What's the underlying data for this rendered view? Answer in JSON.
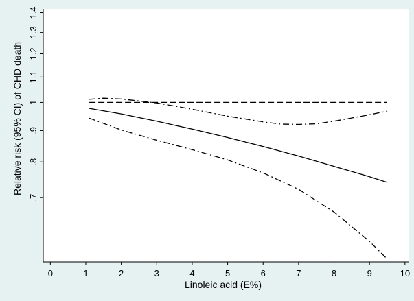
{
  "chart_data": {
    "type": "line",
    "title": "",
    "xlabel": "Linoleic acid (E%)",
    "ylabel": "Relative risk (95% CI) of CHD death",
    "xlim": [
      -0.2,
      10.1
    ],
    "ylim": [
      0.55,
      1.42
    ],
    "y_scale": "log",
    "x_ticks": [
      "0",
      "1",
      "2",
      "3",
      "4",
      "5",
      "6",
      "7",
      "8",
      "9",
      "10"
    ],
    "y_ticks": [
      {
        "value": 0.7,
        "label": ".7"
      },
      {
        "value": 0.8,
        "label": ".8"
      },
      {
        "value": 0.9,
        "label": ".9"
      },
      {
        "value": 1.0,
        "label": "1"
      },
      {
        "value": 1.1,
        "label": "1.1"
      },
      {
        "value": 1.2,
        "label": "1.2"
      },
      {
        "value": 1.3,
        "label": "1.3"
      },
      {
        "value": 1.4,
        "label": "1.4"
      }
    ],
    "grid": false,
    "legend": "none",
    "series": [
      {
        "role": "reference",
        "line_style": "dashed",
        "x": [
          1.1,
          9.5
        ],
        "y": [
          1.0,
          1.0
        ]
      },
      {
        "role": "estimate",
        "line_style": "solid",
        "x": [
          1.1,
          2,
          3,
          4,
          5,
          6,
          7,
          8,
          9,
          9.5
        ],
        "y": [
          0.978,
          0.958,
          0.932,
          0.905,
          0.877,
          0.848,
          0.818,
          0.787,
          0.757,
          0.741
        ]
      },
      {
        "role": "upper-ci",
        "line_style": "dash-dot",
        "x": [
          1.1,
          1.5,
          2,
          3,
          4,
          5,
          6,
          6.5,
          7,
          7.5,
          8,
          9,
          9.5
        ],
        "y": [
          1.012,
          1.016,
          1.013,
          0.998,
          0.975,
          0.95,
          0.93,
          0.922,
          0.921,
          0.923,
          0.932,
          0.955,
          0.968
        ]
      },
      {
        "role": "lower-ci",
        "line_style": "dash-dot",
        "x": [
          1.1,
          2,
          3,
          4,
          5,
          6,
          7,
          8,
          9,
          9.5
        ],
        "y": [
          0.943,
          0.902,
          0.868,
          0.838,
          0.806,
          0.768,
          0.722,
          0.663,
          0.594,
          0.556
        ]
      }
    ],
    "colors": {
      "background": "#e6f1f1",
      "plot_background": "#ffffff",
      "line": "#000000"
    }
  }
}
